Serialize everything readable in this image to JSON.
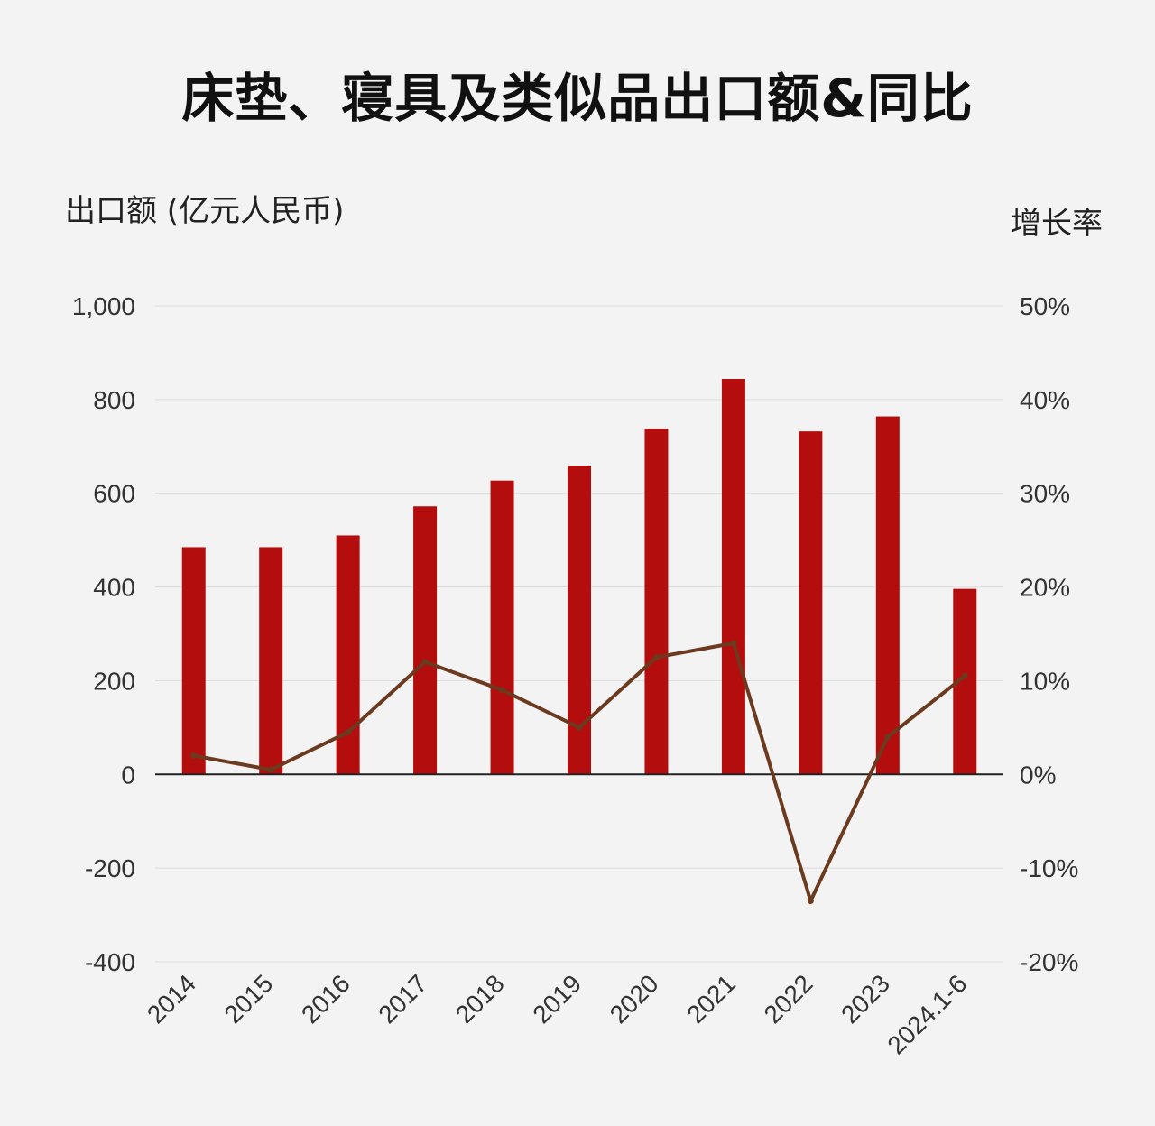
{
  "chart_data": {
    "type": "bar",
    "title": "床垫、寝具及类似品出口额&同比",
    "ylabel": "出口额 (亿元人民币)",
    "y2label": "增长率",
    "categories": [
      "2014",
      "2015",
      "2016",
      "2017",
      "2018",
      "2019",
      "2020",
      "2021",
      "2022",
      "2023",
      "2024.1-6"
    ],
    "series": [
      {
        "type": "bar",
        "axis": "left",
        "color": "#b40d0d",
        "values": [
          485,
          485,
          510,
          572,
          627,
          659,
          738,
          844,
          732,
          764,
          396
        ]
      },
      {
        "type": "line",
        "axis": "right",
        "color": "#6b3a1f",
        "values": [
          2,
          0.5,
          4.5,
          12,
          9,
          5,
          12.5,
          14,
          -13.5,
          4,
          10.5
        ]
      }
    ],
    "ylim": [
      -400,
      1000
    ],
    "y_ticks": [
      "1,000",
      "800",
      "600",
      "400",
      "200",
      "0",
      "-200",
      "-400"
    ],
    "y2lim": [
      -20,
      50
    ],
    "y2_ticks": [
      "50%",
      "40%",
      "30%",
      "20%",
      "10%",
      "0%",
      "-10%",
      "-20%"
    ],
    "grid": true
  }
}
